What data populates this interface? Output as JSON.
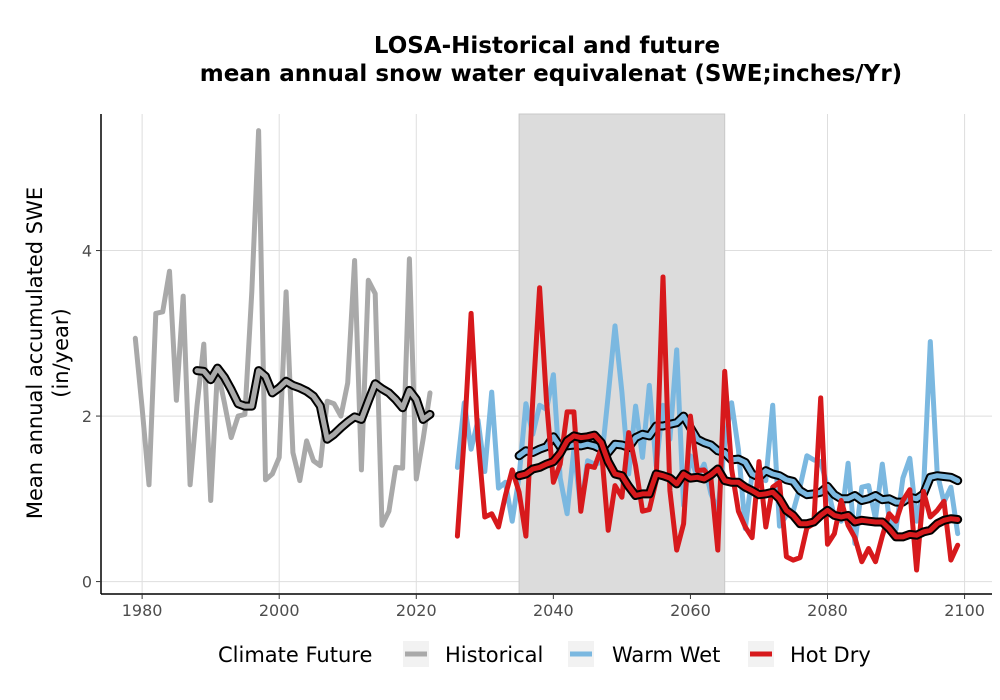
{
  "chart_data": {
    "type": "line",
    "title": "LOSA-Historical and future",
    "subtitle": "mean annual snow water equivalenat (SWE;inches/Yr)",
    "ylabel_line1": "Mean annual accumulated SWE",
    "ylabel_line2": "(in/year)",
    "xlim": [
      1974,
      2104
    ],
    "ylim": [
      -0.15,
      5.65
    ],
    "x_ticks": [
      1980,
      2000,
      2020,
      2040,
      2060,
      2080,
      2100
    ],
    "y_ticks": [
      0,
      2,
      4
    ],
    "grid": true,
    "shaded_period": [
      2035,
      2065
    ],
    "legend": {
      "title": "Climate Future",
      "position": "bottom",
      "entries": [
        "Historical",
        "Warm Wet",
        "Hot Dry"
      ]
    },
    "colors": {
      "Historical": "#a9a9a9",
      "Warm Wet": "#7bb8e0",
      "Hot Dry": "#d7191c",
      "shade": "#dcdcdc",
      "grid": "#dedede",
      "smooth_outline": "#000000"
    },
    "series": [
      {
        "name": "Historical",
        "x": [
          1979,
          1980,
          1981,
          1982,
          1983,
          1984,
          1985,
          1986,
          1987,
          1988,
          1989,
          1990,
          1991,
          1992,
          1993,
          1994,
          1995,
          1996,
          1997,
          1998,
          1999,
          2000,
          2001,
          2002,
          2003,
          2004,
          2005,
          2006,
          2007,
          2008,
          2009,
          2010,
          2011,
          2012,
          2013,
          2014,
          2015,
          2016,
          2017,
          2018,
          2019,
          2020,
          2021,
          2022
        ],
        "y": [
          2.94,
          2.1,
          1.17,
          3.24,
          3.26,
          3.75,
          2.19,
          3.45,
          1.17,
          2.12,
          2.87,
          0.98,
          2.56,
          2.16,
          1.74,
          2.0,
          2.02,
          3.5,
          5.45,
          1.23,
          1.3,
          1.5,
          3.5,
          1.56,
          1.22,
          1.7,
          1.46,
          1.4,
          2.18,
          2.15,
          2.0,
          2.4,
          3.88,
          1.35,
          3.64,
          3.48,
          0.68,
          0.85,
          1.38,
          1.37,
          3.9,
          1.24,
          1.72,
          2.28
        ]
      },
      {
        "name": "Historical",
        "smoothed": true,
        "x": [
          1988,
          1989,
          1990,
          1991,
          1992,
          1993,
          1994,
          1995,
          1996,
          1997,
          1998,
          1999,
          2000,
          2001,
          2002,
          2003,
          2004,
          2005,
          2006,
          2007,
          2008,
          2009,
          2010,
          2011,
          2012,
          2013,
          2014,
          2015,
          2016,
          2017,
          2018,
          2019,
          2020,
          2021,
          2022
        ],
        "y": [
          2.55,
          2.54,
          2.44,
          2.58,
          2.47,
          2.32,
          2.15,
          2.12,
          2.12,
          2.55,
          2.48,
          2.28,
          2.34,
          2.42,
          2.37,
          2.34,
          2.3,
          2.24,
          2.12,
          1.72,
          1.78,
          1.86,
          1.93,
          1.99,
          1.96,
          2.18,
          2.39,
          2.33,
          2.28,
          2.2,
          2.1,
          2.31,
          2.2,
          1.96,
          2.02
        ]
      },
      {
        "name": "Warm Wet",
        "x": [
          2026,
          2027,
          2028,
          2029,
          2030,
          2031,
          2032,
          2033,
          2034,
          2035,
          2036,
          2037,
          2038,
          2039,
          2040,
          2041,
          2042,
          2043,
          2044,
          2045,
          2046,
          2047,
          2048,
          2049,
          2050,
          2051,
          2052,
          2053,
          2054,
          2055,
          2056,
          2057,
          2058,
          2059,
          2060,
          2061,
          2062,
          2063,
          2064,
          2065,
          2066,
          2067,
          2068,
          2069,
          2070,
          2071,
          2072,
          2073,
          2074,
          2075,
          2076,
          2077,
          2078,
          2079,
          2080,
          2081,
          2082,
          2083,
          2084,
          2085,
          2086,
          2087,
          2088,
          2089,
          2090,
          2091,
          2092,
          2093,
          2094,
          2095,
          2096,
          2097,
          2098,
          2099
        ],
        "y": [
          1.38,
          2.16,
          1.6,
          1.95,
          1.33,
          2.29,
          1.13,
          1.2,
          0.73,
          1.27,
          2.15,
          1.78,
          2.13,
          2.08,
          2.5,
          1.25,
          0.82,
          1.6,
          0.89,
          1.46,
          1.42,
          1.44,
          2.25,
          3.09,
          2.29,
          1.3,
          2.12,
          1.5,
          2.37,
          1.4,
          2.13,
          1.72,
          2.8,
          0.92,
          1.52,
          1.25,
          1.42,
          1.06,
          0.86,
          1.67,
          2.16,
          1.6,
          0.64,
          1.3,
          1.26,
          1.22,
          2.13,
          0.67,
          0.8,
          0.85,
          1.15,
          1.52,
          1.47,
          1.45,
          1.14,
          0.78,
          0.73,
          1.43,
          0.46,
          1.14,
          1.16,
          0.76,
          1.42,
          0.75,
          0.63,
          1.25,
          1.49,
          0.73,
          1.11,
          2.9,
          1.31,
          0.96,
          1.14,
          0.58
        ]
      },
      {
        "name": "Warm Wet",
        "smoothed": true,
        "x": [
          2035,
          2036,
          2037,
          2038,
          2039,
          2040,
          2041,
          2042,
          2043,
          2044,
          2045,
          2046,
          2047,
          2048,
          2049,
          2050,
          2051,
          2052,
          2053,
          2054,
          2055,
          2056,
          2057,
          2058,
          2059,
          2060,
          2061,
          2062,
          2063,
          2064,
          2065,
          2066,
          2067,
          2068,
          2069,
          2070,
          2071,
          2072,
          2073,
          2074,
          2075,
          2076,
          2077,
          2078,
          2079,
          2080,
          2081,
          2082,
          2083,
          2084,
          2085,
          2086,
          2087,
          2088,
          2089,
          2090,
          2091,
          2092,
          2093,
          2094,
          2095,
          2096,
          2097,
          2098,
          2099
        ],
        "y": [
          1.52,
          1.58,
          1.56,
          1.6,
          1.63,
          1.75,
          1.63,
          1.64,
          1.65,
          1.64,
          1.66,
          1.64,
          1.6,
          1.56,
          1.66,
          1.65,
          1.62,
          1.74,
          1.78,
          1.76,
          1.88,
          1.88,
          1.9,
          1.92,
          2.0,
          1.86,
          1.72,
          1.68,
          1.65,
          1.58,
          1.56,
          1.47,
          1.48,
          1.44,
          1.3,
          1.26,
          1.34,
          1.3,
          1.28,
          1.23,
          1.21,
          1.1,
          1.05,
          1.06,
          1.08,
          1.15,
          1.05,
          1.0,
          1.0,
          1.04,
          0.98,
          1.0,
          1.04,
          0.99,
          1.0,
          0.96,
          0.96,
          1.02,
          1.0,
          1.06,
          1.26,
          1.28,
          1.27,
          1.26,
          1.22
        ]
      },
      {
        "name": "Hot Dry",
        "x": [
          2026,
          2027,
          2028,
          2029,
          2030,
          2031,
          2032,
          2033,
          2034,
          2035,
          2036,
          2037,
          2038,
          2039,
          2040,
          2041,
          2042,
          2043,
          2044,
          2045,
          2046,
          2047,
          2048,
          2049,
          2050,
          2051,
          2052,
          2053,
          2054,
          2055,
          2056,
          2057,
          2058,
          2059,
          2060,
          2061,
          2062,
          2063,
          2064,
          2065,
          2066,
          2067,
          2068,
          2069,
          2070,
          2071,
          2072,
          2073,
          2074,
          2075,
          2076,
          2077,
          2078,
          2079,
          2080,
          2081,
          2082,
          2083,
          2084,
          2085,
          2086,
          2087,
          2088,
          2089,
          2090,
          2091,
          2092,
          2093,
          2094,
          2095,
          2096,
          2097,
          2098,
          2099
        ],
        "y": [
          0.55,
          1.76,
          3.24,
          1.72,
          0.78,
          0.82,
          0.66,
          1.04,
          1.35,
          1.08,
          0.55,
          2.2,
          3.55,
          2.18,
          1.2,
          1.42,
          2.05,
          2.05,
          0.85,
          1.4,
          1.38,
          1.61,
          0.62,
          1.16,
          1.02,
          1.8,
          1.4,
          0.85,
          0.87,
          1.22,
          3.68,
          1.1,
          0.38,
          0.7,
          2.0,
          1.34,
          1.35,
          1.24,
          0.38,
          2.54,
          1.36,
          0.85,
          0.66,
          0.53,
          1.45,
          0.66,
          1.14,
          1.2,
          0.3,
          0.26,
          0.29,
          0.65,
          0.7,
          2.22,
          0.45,
          0.58,
          0.98,
          0.68,
          0.53,
          0.24,
          0.4,
          0.24,
          0.55,
          0.82,
          0.73,
          0.98,
          1.11,
          0.14,
          1.09,
          0.78,
          0.86,
          0.97,
          0.26,
          0.44
        ]
      },
      {
        "name": "Hot Dry",
        "smoothed": true,
        "x": [
          2035,
          2036,
          2037,
          2038,
          2039,
          2040,
          2041,
          2042,
          2043,
          2044,
          2045,
          2046,
          2047,
          2048,
          2049,
          2050,
          2051,
          2052,
          2053,
          2054,
          2055,
          2056,
          2057,
          2058,
          2059,
          2060,
          2061,
          2062,
          2063,
          2064,
          2065,
          2066,
          2067,
          2068,
          2069,
          2070,
          2071,
          2072,
          2073,
          2074,
          2075,
          2076,
          2077,
          2078,
          2079,
          2080,
          2081,
          2082,
          2083,
          2084,
          2085,
          2086,
          2087,
          2088,
          2089,
          2090,
          2091,
          2092,
          2093,
          2094,
          2095,
          2096,
          2097,
          2098,
          2099
        ],
        "y": [
          1.28,
          1.3,
          1.36,
          1.38,
          1.42,
          1.45,
          1.55,
          1.7,
          1.76,
          1.74,
          1.75,
          1.77,
          1.68,
          1.45,
          1.3,
          1.28,
          1.15,
          1.04,
          1.06,
          1.06,
          1.3,
          1.28,
          1.25,
          1.18,
          1.3,
          1.25,
          1.26,
          1.24,
          1.29,
          1.36,
          1.22,
          1.2,
          1.2,
          1.14,
          1.1,
          1.05,
          1.06,
          1.08,
          1.0,
          0.86,
          0.8,
          0.7,
          0.7,
          0.72,
          0.8,
          0.86,
          0.8,
          0.78,
          0.8,
          0.72,
          0.74,
          0.73,
          0.72,
          0.72,
          0.64,
          0.54,
          0.54,
          0.57,
          0.56,
          0.6,
          0.62,
          0.7,
          0.74,
          0.76,
          0.75
        ]
      }
    ]
  }
}
